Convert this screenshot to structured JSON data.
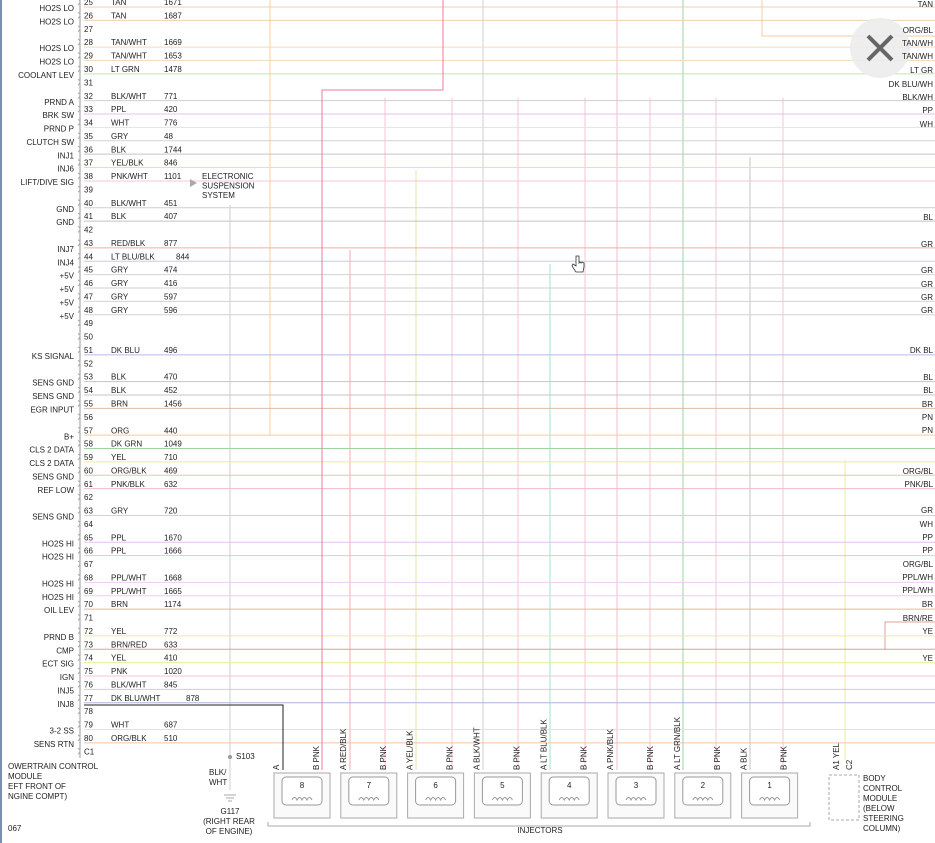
{
  "pcm": {
    "pins": [
      {
        "pin": 25,
        "label": "HO2S LO",
        "wire": "TAN",
        "circuit": 1671,
        "stroke": "#e9d2b0"
      },
      {
        "pin": 26,
        "label": "HO2S LO",
        "wire": "TAN",
        "circuit": 1687,
        "stroke": "#e9d2b0"
      },
      {
        "pin": 27
      },
      {
        "pin": 28,
        "label": "HO2S LO",
        "wire": "TAN/WHT",
        "circuit": 1669,
        "stroke": "#efdcc2"
      },
      {
        "pin": 29,
        "label": "HO2S LO",
        "wire": "TAN/WHT",
        "circuit": 1653,
        "stroke": "#efdcc2"
      },
      {
        "pin": 30,
        "label": "COOLANT LEV",
        "wire": "LT GRN",
        "circuit": 1478,
        "stroke": "#bde8b4"
      },
      {
        "pin": 31
      },
      {
        "pin": 32,
        "label": "PRND A",
        "wire": "BLK/WHT",
        "circuit": 771,
        "stroke": "#cfcfcf"
      },
      {
        "pin": 33,
        "label": "BRK SW",
        "wire": "PPL",
        "circuit": 420,
        "stroke": "#e4c2ec"
      },
      {
        "pin": 34,
        "label": "PRND P",
        "wire": "WHT",
        "circuit": 776,
        "stroke": "#e2e2e2"
      },
      {
        "pin": 35,
        "label": "CLUTCH SW",
        "wire": "GRY",
        "circuit": 48,
        "stroke": "#d2d2d2"
      },
      {
        "pin": 36,
        "label": "INJ1",
        "wire": "BLK",
        "circuit": 1744,
        "stroke": "#c4c4c4"
      },
      {
        "pin": 37,
        "label": "INJ6",
        "wire": "YEL/BLK",
        "circuit": 846,
        "stroke": "#e8e2a8"
      },
      {
        "pin": 38,
        "label": "LIFT/DIVE SIG",
        "wire": "PNK/WHT",
        "circuit": 1101,
        "stroke": "#f2cad8"
      },
      {
        "pin": 39
      },
      {
        "pin": 40,
        "label": "GND",
        "wire": "BLK/WHT",
        "circuit": 451,
        "stroke": "#cfcfcf"
      },
      {
        "pin": 41,
        "label": "GND",
        "wire": "BLK",
        "circuit": 407,
        "stroke": "#c4c4c4"
      },
      {
        "pin": 42
      },
      {
        "pin": 43,
        "label": "INJ7",
        "wire": "RED/BLK",
        "circuit": 877,
        "stroke": "#f0acac"
      },
      {
        "pin": 44,
        "label": "INJ4",
        "wire": "LT BLU/BLK",
        "circuit": 844,
        "stroke": "#a8dede"
      },
      {
        "pin": 45,
        "label": "+5V",
        "wire": "GRY",
        "circuit": 474,
        "stroke": "#d2d2d2"
      },
      {
        "pin": 46,
        "label": "+5V",
        "wire": "GRY",
        "circuit": 416,
        "stroke": "#d2d2d2"
      },
      {
        "pin": 47,
        "label": "+5V",
        "wire": "GRY",
        "circuit": 597,
        "stroke": "#d2d2d2"
      },
      {
        "pin": 48,
        "label": "+5V",
        "wire": "GRY",
        "circuit": 596,
        "stroke": "#d2d2d2"
      },
      {
        "pin": 49
      },
      {
        "pin": 50
      },
      {
        "pin": 51,
        "label": "KS SIGNAL",
        "wire": "DK BLU",
        "circuit": 496,
        "stroke": "#b0bde8"
      },
      {
        "pin": 52
      },
      {
        "pin": 53,
        "label": "SENS GND",
        "wire": "BLK",
        "circuit": 470,
        "stroke": "#c4c4c4"
      },
      {
        "pin": 54,
        "label": "SENS GND",
        "wire": "BLK",
        "circuit": 452,
        "stroke": "#c4c4c4"
      },
      {
        "pin": 55,
        "label": "EGR INPUT",
        "wire": "BRN",
        "circuit": 1456,
        "stroke": "#dbbca4"
      },
      {
        "pin": 56
      },
      {
        "pin": 57,
        "label": "B+",
        "wire": "ORG",
        "circuit": 440,
        "stroke": "#f5cc9e"
      },
      {
        "pin": 58,
        "label": "CLS 2 DATA",
        "wire": "DK GRN",
        "circuit": 1049,
        "stroke": "#a2d2a2"
      },
      {
        "pin": 59,
        "label": "CLS 2 DATA",
        "wire": "YEL",
        "circuit": 710,
        "stroke": "#ecec90"
      },
      {
        "pin": 60,
        "label": "SENS GND",
        "wire": "ORG/BLK",
        "circuit": 469,
        "stroke": "#f0c4a6"
      },
      {
        "pin": 61,
        "label": "REF LOW",
        "wire": "PNK/BLK",
        "circuit": 632,
        "stroke": "#f0bccb"
      },
      {
        "pin": 62
      },
      {
        "pin": 63,
        "label": "SENS GND",
        "wire": "GRY",
        "circuit": 720,
        "stroke": "#d2d2d2"
      },
      {
        "pin": 64
      },
      {
        "pin": 65,
        "label": "HO2S HI",
        "wire": "PPL",
        "circuit": 1670,
        "stroke": "#e4c2ec"
      },
      {
        "pin": 66,
        "label": "HO2S HI",
        "wire": "PPL",
        "circuit": 1666,
        "stroke": "#e4c2ec"
      },
      {
        "pin": 67
      },
      {
        "pin": 68,
        "label": "HO2S HI",
        "wire": "PPL/WHT",
        "circuit": 1668,
        "stroke": "#ebcdf0"
      },
      {
        "pin": 69,
        "label": "HO2S HI",
        "wire": "PPL/WHT",
        "circuit": 1665,
        "stroke": "#ebcdf0"
      },
      {
        "pin": 70,
        "label": "OIL LEV",
        "wire": "BRN",
        "circuit": 1174,
        "stroke": "#dbbca4"
      },
      {
        "pin": 71
      },
      {
        "pin": 72,
        "label": "PRND B",
        "wire": "YEL",
        "circuit": 772,
        "stroke": "#ecec90"
      },
      {
        "pin": 73,
        "label": "CMP",
        "wire": "BRN/RED",
        "circuit": 633,
        "stroke": "#e0a096"
      },
      {
        "pin": 74,
        "label": "ECT SIG",
        "wire": "YEL",
        "circuit": 410,
        "stroke": "#ecec90"
      },
      {
        "pin": 75,
        "label": "IGN",
        "wire": "PNK",
        "circuit": 1020,
        "stroke": "#f5c4d2"
      },
      {
        "pin": 76,
        "label": "INJ5",
        "wire": "BLK/WHT",
        "circuit": 845,
        "stroke": "#cfcfcf"
      },
      {
        "pin": 77,
        "label": "INJ8",
        "wire": "DK BLU/WHT",
        "circuit": 878,
        "stroke": "#a8b6e2"
      },
      {
        "pin": 78
      },
      {
        "pin": 79,
        "label": "3-2 SS",
        "wire": "WHT",
        "circuit": 687,
        "stroke": "#e2e2e2"
      },
      {
        "pin": 80,
        "label": "SENS RTN",
        "wire": "ORG/BLK",
        "circuit": 510,
        "stroke": "#f0c4a6"
      },
      {
        "pin": "C1"
      }
    ],
    "name_lines": [
      "OWERTRAIN CONTROL",
      "MODULE",
      "EFT FRONT OF",
      "NGINE COMPT)"
    ],
    "page_number": "067"
  },
  "right_labels": [
    "TAN",
    "ORG/BL",
    "TAN/WH",
    "TAN/WH",
    "LT GR",
    "DK BLU/WH",
    "BLK/WH",
    "PP",
    "WH",
    "BL",
    "GR",
    "GR",
    "GR",
    "GR",
    "GR",
    "DK BL",
    "BL",
    "BL",
    "BR",
    "PN",
    "PN",
    "ORG/BL",
    "PNK/BL",
    "GR",
    "WH",
    "PP",
    "PP",
    "ORG/BL",
    "PPL/WH",
    "PPL/WH",
    "BR",
    "BRN/RE",
    "YE",
    "YE"
  ],
  "suspension": [
    "ELECTRONIC",
    "SUSPENSION",
    "SYSTEM"
  ],
  "splice": "S103",
  "ground": {
    "wire": [
      "BLK/",
      "WHT"
    ],
    "name": "G117",
    "location": [
      "(RIGHT REAR",
      "OF ENGINE)"
    ]
  },
  "injectors": {
    "title": "INJECTORS",
    "items": [
      {
        "number": "8",
        "pin_a": "A",
        "pin_b": "B PNK"
      },
      {
        "number": "7",
        "pin_a": "A RED/BLK",
        "pin_b": "B PNK"
      },
      {
        "number": "6",
        "pin_a": "A YEL/BLK",
        "pin_b": "B PNK"
      },
      {
        "number": "5",
        "pin_a": "A BLK/WHT",
        "pin_b": "B PNK"
      },
      {
        "number": "4",
        "pin_a": "A LT BLU/BLK",
        "pin_b": "B PNK"
      },
      {
        "number": "3",
        "pin_a": "A PNK/BLK",
        "pin_b": "B PNK"
      },
      {
        "number": "2",
        "pin_a": "A LT GRN/BLK",
        "pin_b": "B PNK"
      },
      {
        "number": "1",
        "pin_a": "A BLK",
        "pin_b": "B PNK"
      }
    ]
  },
  "bcm": {
    "pin": "A1 YEL",
    "connector": "C2",
    "name_lines": [
      "BODY",
      "CONTROL",
      "MODULE",
      "(BELOW",
      "STEERING",
      "COLUMN)"
    ]
  }
}
